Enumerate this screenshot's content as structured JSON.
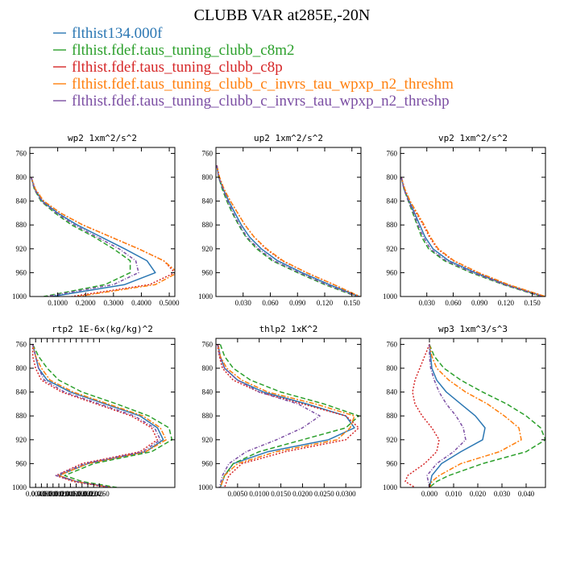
{
  "figure_title": "CLUBB VAR at285E,-20N",
  "legend": [
    {
      "label": "flthist134.000f",
      "color": "#2b77b3",
      "dash": ""
    },
    {
      "label": "flthist.fdef.taus_tuning_clubb_c8m2",
      "color": "#2ca02c",
      "dash": "6,3"
    },
    {
      "label": "flthist.fdef.taus_tuning_clubb_c8p",
      "color": "#d62728",
      "dash": "2,2"
    },
    {
      "label": "flthist.fdef.taus_tuning_clubb_c_invrs_tau_wpxp_n2_threshm",
      "color": "#ff7f0e",
      "dash": "6,2,2,2"
    },
    {
      "label": "flthist.fdef.taus_tuning_clubb_c_invrs_tau_wpxp_n2_threshp",
      "color": "#7b4ea3",
      "dash": "4,2,1,2"
    }
  ],
  "chart_data": [
    {
      "type": "line",
      "title": "wp2  1xm^2/s^2",
      "ylim": [
        1000,
        750
      ],
      "yticks": [
        1000,
        960,
        920,
        880,
        840,
        800,
        760
      ],
      "xlim": [
        0,
        0.52
      ],
      "xticks": [
        0.1,
        0.2,
        0.3,
        0.4,
        0.5
      ],
      "xtick_labels": [
        "0.1000",
        "0.2000",
        "0.3000",
        "0.4000",
        "0.5000"
      ],
      "y": [
        800,
        820,
        840,
        860,
        880,
        900,
        920,
        940,
        960,
        980,
        1000
      ],
      "series": [
        {
          "values": [
            0.005,
            0.018,
            0.045,
            0.1,
            0.17,
            0.255,
            0.34,
            0.42,
            0.45,
            0.34,
            0.08
          ]
        },
        {
          "values": [
            0.005,
            0.016,
            0.04,
            0.09,
            0.15,
            0.23,
            0.3,
            0.36,
            0.36,
            0.27,
            0.05
          ]
        },
        {
          "values": [
            0.005,
            0.02,
            0.05,
            0.11,
            0.19,
            0.29,
            0.39,
            0.48,
            0.52,
            0.43,
            0.15
          ]
        },
        {
          "values": [
            0.005,
            0.02,
            0.05,
            0.11,
            0.19,
            0.29,
            0.39,
            0.48,
            0.53,
            0.45,
            0.17
          ]
        },
        {
          "values": [
            0.005,
            0.017,
            0.042,
            0.095,
            0.16,
            0.24,
            0.32,
            0.38,
            0.39,
            0.3,
            0.06
          ]
        }
      ]
    },
    {
      "type": "line",
      "title": "up2  1xm^2/s^2",
      "ylim": [
        1000,
        750
      ],
      "yticks": [
        1000,
        960,
        920,
        880,
        840,
        800,
        760
      ],
      "xlim": [
        0,
        0.16
      ],
      "xticks": [
        0.03,
        0.06,
        0.09,
        0.12,
        0.15
      ],
      "xtick_labels": [
        "0.030",
        "0.060",
        "0.090",
        "0.120",
        "0.150"
      ],
      "y": [
        780,
        800,
        820,
        840,
        860,
        880,
        900,
        920,
        940,
        960,
        980,
        1000
      ],
      "series": [
        {
          "values": [
            0.001,
            0.003,
            0.008,
            0.014,
            0.021,
            0.028,
            0.037,
            0.05,
            0.068,
            0.095,
            0.125,
            0.158
          ]
        },
        {
          "values": [
            0.001,
            0.003,
            0.007,
            0.012,
            0.018,
            0.025,
            0.033,
            0.045,
            0.062,
            0.09,
            0.12,
            0.155
          ]
        },
        {
          "values": [
            0.001,
            0.004,
            0.009,
            0.016,
            0.024,
            0.032,
            0.042,
            0.055,
            0.073,
            0.1,
            0.13,
            0.158
          ]
        },
        {
          "values": [
            0.001,
            0.004,
            0.009,
            0.016,
            0.024,
            0.032,
            0.042,
            0.056,
            0.074,
            0.1,
            0.13,
            0.159
          ]
        },
        {
          "values": [
            0.001,
            0.003,
            0.008,
            0.013,
            0.019,
            0.026,
            0.034,
            0.047,
            0.064,
            0.092,
            0.122,
            0.156
          ]
        }
      ]
    },
    {
      "type": "line",
      "title": "vp2  1xm^2/s^2",
      "ylim": [
        1000,
        750
      ],
      "yticks": [
        1000,
        960,
        920,
        880,
        840,
        800,
        760
      ],
      "xlim": [
        0,
        0.165
      ],
      "xticks": [
        0.03,
        0.06,
        0.09,
        0.12,
        0.15
      ],
      "xtick_labels": [
        "0.030",
        "0.060",
        "0.090",
        "0.120",
        "0.150"
      ],
      "y": [
        800,
        820,
        840,
        860,
        880,
        900,
        920,
        940,
        960,
        980,
        1000
      ],
      "series": [
        {
          "values": [
            0.001,
            0.004,
            0.01,
            0.016,
            0.022,
            0.028,
            0.037,
            0.055,
            0.085,
            0.12,
            0.163
          ]
        },
        {
          "values": [
            0.001,
            0.004,
            0.009,
            0.014,
            0.019,
            0.024,
            0.032,
            0.05,
            0.08,
            0.117,
            0.16
          ]
        },
        {
          "values": [
            0.001,
            0.005,
            0.011,
            0.018,
            0.026,
            0.033,
            0.042,
            0.06,
            0.088,
            0.122,
            0.164
          ]
        },
        {
          "values": [
            0.001,
            0.005,
            0.011,
            0.019,
            0.027,
            0.034,
            0.043,
            0.061,
            0.089,
            0.123,
            0.165
          ]
        },
        {
          "values": [
            0.001,
            0.004,
            0.009,
            0.015,
            0.02,
            0.026,
            0.034,
            0.052,
            0.082,
            0.118,
            0.161
          ]
        }
      ]
    },
    {
      "type": "line",
      "title": "rtp2  1E-6x(kg/kg)^2",
      "ylim": [
        1000,
        750
      ],
      "yticks": [
        1000,
        960,
        920,
        880,
        840,
        800,
        760
      ],
      "xlim": [
        0.002,
        0.052
      ],
      "xticks": [
        0.004,
        0.006,
        0.008,
        0.01,
        0.012,
        0.014,
        0.016,
        0.018,
        0.02,
        0.022,
        0.024,
        0.026
      ],
      "xtick_labels": [
        "0.0040",
        "0.0060",
        "0.0080",
        "0.0100",
        "0.0120",
        "0.0140",
        "0.0160",
        "0.0180",
        "0.0200",
        "0.0220",
        "0.0240",
        "0.0260"
      ],
      "y": [
        760,
        780,
        800,
        820,
        840,
        860,
        880,
        900,
        920,
        940,
        960,
        980,
        990,
        1000
      ],
      "series": [
        {
          "values": [
            0.003,
            0.004,
            0.005,
            0.008,
            0.016,
            0.028,
            0.04,
            0.046,
            0.048,
            0.042,
            0.022,
            0.012,
            0.018,
            0.03
          ]
        },
        {
          "values": [
            0.003,
            0.005,
            0.008,
            0.012,
            0.02,
            0.032,
            0.043,
            0.05,
            0.051,
            0.044,
            0.024,
            0.014,
            0.02,
            0.032
          ]
        },
        {
          "values": [
            0.003,
            0.003,
            0.004,
            0.006,
            0.013,
            0.025,
            0.037,
            0.044,
            0.046,
            0.04,
            0.02,
            0.011,
            0.017,
            0.029
          ]
        },
        {
          "values": [
            0.003,
            0.004,
            0.006,
            0.009,
            0.017,
            0.029,
            0.041,
            0.047,
            0.049,
            0.042,
            0.022,
            0.012,
            0.018,
            0.03
          ]
        },
        {
          "values": [
            0.003,
            0.004,
            0.005,
            0.007,
            0.014,
            0.026,
            0.038,
            0.045,
            0.047,
            0.041,
            0.021,
            0.011,
            0.018,
            0.03
          ]
        }
      ]
    },
    {
      "type": "line",
      "title": "thlp2  1xK^2",
      "ylim": [
        1000,
        750
      ],
      "yticks": [
        1000,
        960,
        920,
        880,
        840,
        800,
        760
      ],
      "xlim": [
        0,
        0.0335
      ],
      "xticks": [
        0.005,
        0.01,
        0.015,
        0.02,
        0.025,
        0.03
      ],
      "xtick_labels": [
        "0.0050",
        "0.0100",
        "0.0150",
        "0.0200",
        "0.0250",
        "0.0300"
      ],
      "y": [
        760,
        780,
        800,
        820,
        840,
        860,
        880,
        900,
        920,
        940,
        960,
        980,
        1000
      ],
      "series": [
        {
          "values": [
            0.0005,
            0.001,
            0.002,
            0.005,
            0.011,
            0.021,
            0.03,
            0.032,
            0.026,
            0.012,
            0.004,
            0.002,
            0.001
          ]
        },
        {
          "values": [
            0.001,
            0.002,
            0.004,
            0.008,
            0.015,
            0.025,
            0.033,
            0.03,
            0.02,
            0.01,
            0.004,
            0.002,
            0.001
          ]
        },
        {
          "values": [
            0.0003,
            0.0008,
            0.0015,
            0.004,
            0.01,
            0.02,
            0.03,
            0.033,
            0.03,
            0.016,
            0.006,
            0.003,
            0.002
          ]
        },
        {
          "values": [
            0.0005,
            0.001,
            0.0025,
            0.006,
            0.012,
            0.023,
            0.032,
            0.031,
            0.028,
            0.014,
            0.005,
            0.002,
            0.001
          ]
        },
        {
          "values": [
            0.0004,
            0.0009,
            0.002,
            0.005,
            0.01,
            0.019,
            0.024,
            0.02,
            0.014,
            0.007,
            0.003,
            0.0015,
            0.0008
          ]
        }
      ]
    },
    {
      "type": "line",
      "title": "wp3  1xm^3/s^3",
      "ylim": [
        1000,
        750
      ],
      "yticks": [
        1000,
        960,
        920,
        880,
        840,
        800,
        760
      ],
      "xlim": [
        -0.012,
        0.048
      ],
      "xticks": [
        0,
        0.01,
        0.02,
        0.03,
        0.04
      ],
      "xtick_labels": [
        "0.000",
        "0.010",
        "0.020",
        "0.030",
        "0.040"
      ],
      "y": [
        760,
        780,
        800,
        820,
        840,
        860,
        880,
        900,
        920,
        940,
        960,
        980,
        990,
        1000
      ],
      "series": [
        {
          "values": [
            0,
            0.0005,
            0.001,
            0.003,
            0.007,
            0.013,
            0.019,
            0.023,
            0.022,
            0.013,
            0.005,
            0.001,
            0.0005,
            0
          ]
        },
        {
          "values": [
            0,
            0.002,
            0.006,
            0.013,
            0.022,
            0.032,
            0.04,
            0.046,
            0.048,
            0.04,
            0.022,
            0.008,
            0.003,
            0
          ]
        },
        {
          "values": [
            0,
            -0.002,
            -0.004,
            -0.006,
            -0.007,
            -0.006,
            -0.003,
            0.001,
            0.004,
            0.003,
            -0.002,
            -0.009,
            -0.01,
            -0.006
          ]
        },
        {
          "values": [
            0,
            0.001,
            0.003,
            0.008,
            0.015,
            0.024,
            0.031,
            0.037,
            0.038,
            0.029,
            0.013,
            0.004,
            0.001,
            0
          ]
        },
        {
          "values": [
            0,
            0,
            0.0005,
            0.002,
            0.004,
            0.007,
            0.011,
            0.014,
            0.015,
            0.01,
            0.003,
            -0.001,
            -0.0005,
            0
          ]
        }
      ]
    }
  ]
}
